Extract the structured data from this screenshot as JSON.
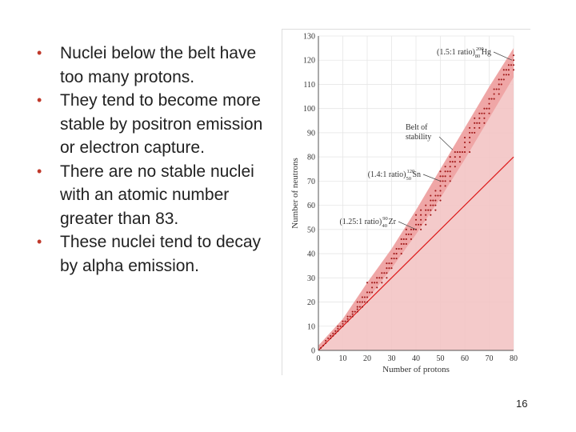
{
  "bullets": [
    "Nuclei below the belt have too many protons.",
    "They tend to become more stable by positron emission or electron capture.",
    "There are no stable nuclei with an atomic number greater than 83.",
    "These nuclei tend to decay by alpha emission."
  ],
  "page_number": "16",
  "colors": {
    "accent": "#c0392b",
    "shade": "#f3c4c4",
    "belt": "#ee9999",
    "dots": "#a01818",
    "line": "#dd1a1a"
  },
  "chart_data": {
    "type": "scatter",
    "xlabel": "Number of protons",
    "ylabel": "Number of neutrons",
    "xlim": [
      0,
      80
    ],
    "ylim": [
      0,
      130
    ],
    "x_ticks": [
      0,
      10,
      20,
      30,
      40,
      50,
      60,
      70,
      80
    ],
    "y_ticks": [
      0,
      10,
      20,
      30,
      40,
      50,
      60,
      70,
      80,
      90,
      100,
      110,
      120,
      130
    ],
    "grid": true,
    "reference_line": {
      "description": "N = Z",
      "points": [
        [
          0,
          0
        ],
        [
          80,
          80
        ]
      ]
    },
    "belt_of_stability": {
      "label": "Belt of stability",
      "lower": [
        [
          0,
          0
        ],
        [
          10,
          10
        ],
        [
          20,
          21
        ],
        [
          30,
          34
        ],
        [
          40,
          48
        ],
        [
          50,
          63
        ],
        [
          60,
          79
        ],
        [
          70,
          96
        ],
        [
          80,
          113
        ]
      ],
      "upper": [
        [
          0,
          2
        ],
        [
          10,
          13
        ],
        [
          20,
          28
        ],
        [
          30,
          42
        ],
        [
          40,
          58
        ],
        [
          50,
          75
        ],
        [
          60,
          92
        ],
        [
          70,
          109
        ],
        [
          80,
          125
        ]
      ]
    },
    "annotations": [
      {
        "ratio": "(1.5:1 ratio)",
        "nuclide": "Hg",
        "mass_number": "200",
        "atomic_number": "80",
        "x": 80,
        "y": 120
      },
      {
        "ratio": "(1.4:1 ratio)",
        "nuclide": "Sn",
        "mass_number": "120",
        "atomic_number": "50",
        "x": 50,
        "y": 70
      },
      {
        "ratio": "(1.25:1 ratio)",
        "nuclide": "Zr",
        "mass_number": "90",
        "atomic_number": "40",
        "x": 40,
        "y": 50
      }
    ],
    "stable_nuclei": [
      [
        1,
        1
      ],
      [
        2,
        2
      ],
      [
        3,
        3
      ],
      [
        3,
        4
      ],
      [
        4,
        5
      ],
      [
        5,
        5
      ],
      [
        5,
        6
      ],
      [
        6,
        6
      ],
      [
        6,
        7
      ],
      [
        7,
        7
      ],
      [
        7,
        8
      ],
      [
        8,
        8
      ],
      [
        8,
        9
      ],
      [
        8,
        10
      ],
      [
        9,
        10
      ],
      [
        10,
        10
      ],
      [
        10,
        11
      ],
      [
        10,
        12
      ],
      [
        11,
        12
      ],
      [
        12,
        12
      ],
      [
        12,
        13
      ],
      [
        12,
        14
      ],
      [
        13,
        14
      ],
      [
        14,
        14
      ],
      [
        14,
        15
      ],
      [
        14,
        16
      ],
      [
        15,
        16
      ],
      [
        16,
        16
      ],
      [
        16,
        17
      ],
      [
        16,
        18
      ],
      [
        16,
        20
      ],
      [
        17,
        18
      ],
      [
        17,
        20
      ],
      [
        18,
        18
      ],
      [
        18,
        20
      ],
      [
        18,
        22
      ],
      [
        19,
        20
      ],
      [
        19,
        22
      ],
      [
        20,
        20
      ],
      [
        20,
        22
      ],
      [
        20,
        24
      ],
      [
        20,
        28
      ],
      [
        21,
        24
      ],
      [
        22,
        24
      ],
      [
        22,
        26
      ],
      [
        22,
        28
      ],
      [
        23,
        28
      ],
      [
        24,
        26
      ],
      [
        24,
        28
      ],
      [
        24,
        30
      ],
      [
        25,
        30
      ],
      [
        26,
        28
      ],
      [
        26,
        30
      ],
      [
        26,
        32
      ],
      [
        27,
        32
      ],
      [
        28,
        30
      ],
      [
        28,
        32
      ],
      [
        28,
        34
      ],
      [
        28,
        36
      ],
      [
        29,
        34
      ],
      [
        29,
        36
      ],
      [
        30,
        34
      ],
      [
        30,
        36
      ],
      [
        30,
        38
      ],
      [
        31,
        38
      ],
      [
        31,
        40
      ],
      [
        32,
        38
      ],
      [
        32,
        40
      ],
      [
        32,
        42
      ],
      [
        33,
        42
      ],
      [
        34,
        40
      ],
      [
        34,
        42
      ],
      [
        34,
        44
      ],
      [
        34,
        46
      ],
      [
        35,
        44
      ],
      [
        35,
        46
      ],
      [
        36,
        44
      ],
      [
        36,
        46
      ],
      [
        36,
        48
      ],
      [
        36,
        50
      ],
      [
        37,
        48
      ],
      [
        38,
        46
      ],
      [
        38,
        48
      ],
      [
        38,
        50
      ],
      [
        39,
        50
      ],
      [
        40,
        50
      ],
      [
        40,
        52
      ],
      [
        40,
        54
      ],
      [
        40,
        56
      ],
      [
        41,
        52
      ],
      [
        42,
        50
      ],
      [
        42,
        52
      ],
      [
        42,
        54
      ],
      [
        42,
        56
      ],
      [
        42,
        58
      ],
      [
        44,
        52
      ],
      [
        44,
        54
      ],
      [
        44,
        56
      ],
      [
        44,
        58
      ],
      [
        44,
        60
      ],
      [
        45,
        58
      ],
      [
        46,
        56
      ],
      [
        46,
        58
      ],
      [
        46,
        60
      ],
      [
        46,
        62
      ],
      [
        46,
        64
      ],
      [
        47,
        60
      ],
      [
        47,
        62
      ],
      [
        48,
        58
      ],
      [
        48,
        60
      ],
      [
        48,
        62
      ],
      [
        48,
        64
      ],
      [
        48,
        66
      ],
      [
        49,
        64
      ],
      [
        50,
        62
      ],
      [
        50,
        64
      ],
      [
        50,
        66
      ],
      [
        50,
        68
      ],
      [
        50,
        70
      ],
      [
        50,
        72
      ],
      [
        50,
        74
      ],
      [
        51,
        70
      ],
      [
        51,
        72
      ],
      [
        52,
        68
      ],
      [
        52,
        70
      ],
      [
        52,
        72
      ],
      [
        52,
        74
      ],
      [
        52,
        76
      ],
      [
        53,
        74
      ],
      [
        54,
        70
      ],
      [
        54,
        72
      ],
      [
        54,
        74
      ],
      [
        54,
        76
      ],
      [
        54,
        78
      ],
      [
        54,
        80
      ],
      [
        55,
        78
      ],
      [
        56,
        76
      ],
      [
        56,
        78
      ],
      [
        56,
        80
      ],
      [
        56,
        82
      ],
      [
        57,
        82
      ],
      [
        58,
        78
      ],
      [
        58,
        80
      ],
      [
        58,
        82
      ],
      [
        59,
        82
      ],
      [
        60,
        82
      ],
      [
        60,
        84
      ],
      [
        60,
        86
      ],
      [
        60,
        88
      ],
      [
        62,
        82
      ],
      [
        62,
        86
      ],
      [
        62,
        88
      ],
      [
        62,
        90
      ],
      [
        62,
        92
      ],
      [
        63,
        90
      ],
      [
        64,
        90
      ],
      [
        64,
        92
      ],
      [
        64,
        94
      ],
      [
        64,
        96
      ],
      [
        65,
        94
      ],
      [
        66,
        92
      ],
      [
        66,
        94
      ],
      [
        66,
        96
      ],
      [
        66,
        98
      ],
      [
        67,
        98
      ],
      [
        68,
        94
      ],
      [
        68,
        96
      ],
      [
        68,
        98
      ],
      [
        68,
        100
      ],
      [
        69,
        100
      ],
      [
        70,
        98
      ],
      [
        70,
        100
      ],
      [
        70,
        102
      ],
      [
        70,
        104
      ],
      [
        71,
        104
      ],
      [
        72,
        104
      ],
      [
        72,
        106
      ],
      [
        72,
        108
      ],
      [
        73,
        108
      ],
      [
        74,
        106
      ],
      [
        74,
        108
      ],
      [
        74,
        110
      ],
      [
        74,
        112
      ],
      [
        75,
        110
      ],
      [
        75,
        112
      ],
      [
        76,
        112
      ],
      [
        76,
        114
      ],
      [
        76,
        116
      ],
      [
        77,
        114
      ],
      [
        77,
        116
      ],
      [
        78,
        114
      ],
      [
        78,
        116
      ],
      [
        78,
        118
      ],
      [
        79,
        118
      ],
      [
        80,
        116
      ],
      [
        80,
        118
      ],
      [
        80,
        120
      ],
      [
        80,
        122
      ]
    ]
  }
}
